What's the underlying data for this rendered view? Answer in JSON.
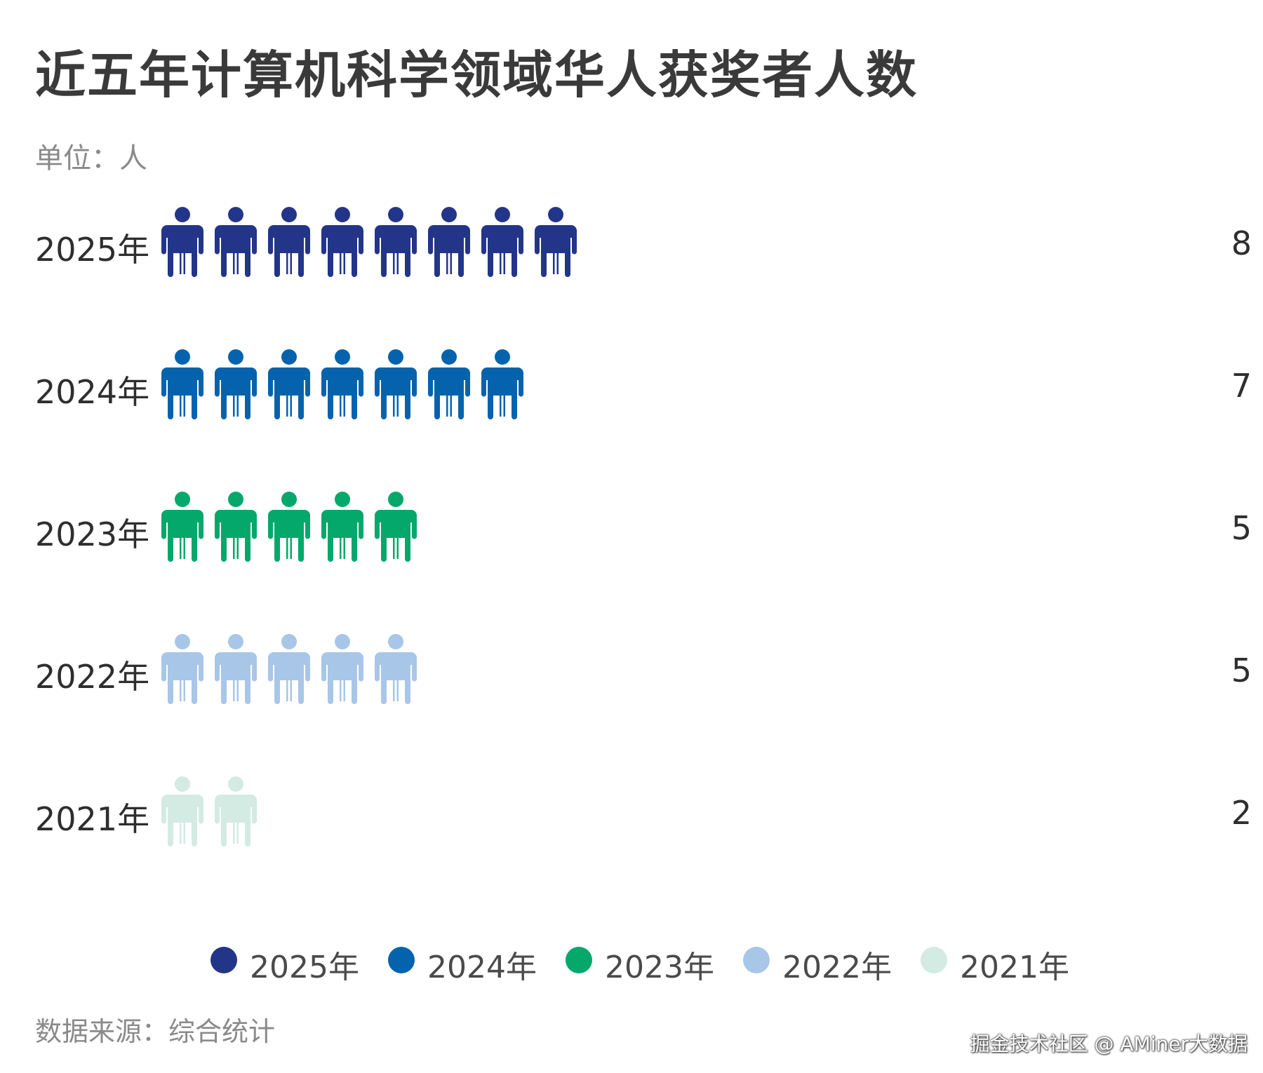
{
  "title": "近五年计算机科学领域华人获奖者人数",
  "unit": "单位：人",
  "source": "数据来源：综合统计",
  "watermark": "掘金技术社区 @ AMiner大数据",
  "chart_data": {
    "type": "pictograph",
    "categories": [
      "2025年",
      "2024年",
      "2023年",
      "2022年",
      "2021年"
    ],
    "values": [
      8,
      7,
      5,
      5,
      2
    ],
    "colors": [
      "#233589",
      "#0563ad",
      "#04a86b",
      "#a8c6e8",
      "#d3ebe3"
    ],
    "icon": "person-icon",
    "legend": {
      "position": "bottom",
      "entries": [
        "2025年",
        "2024年",
        "2023年",
        "2022年",
        "2021年"
      ]
    }
  }
}
